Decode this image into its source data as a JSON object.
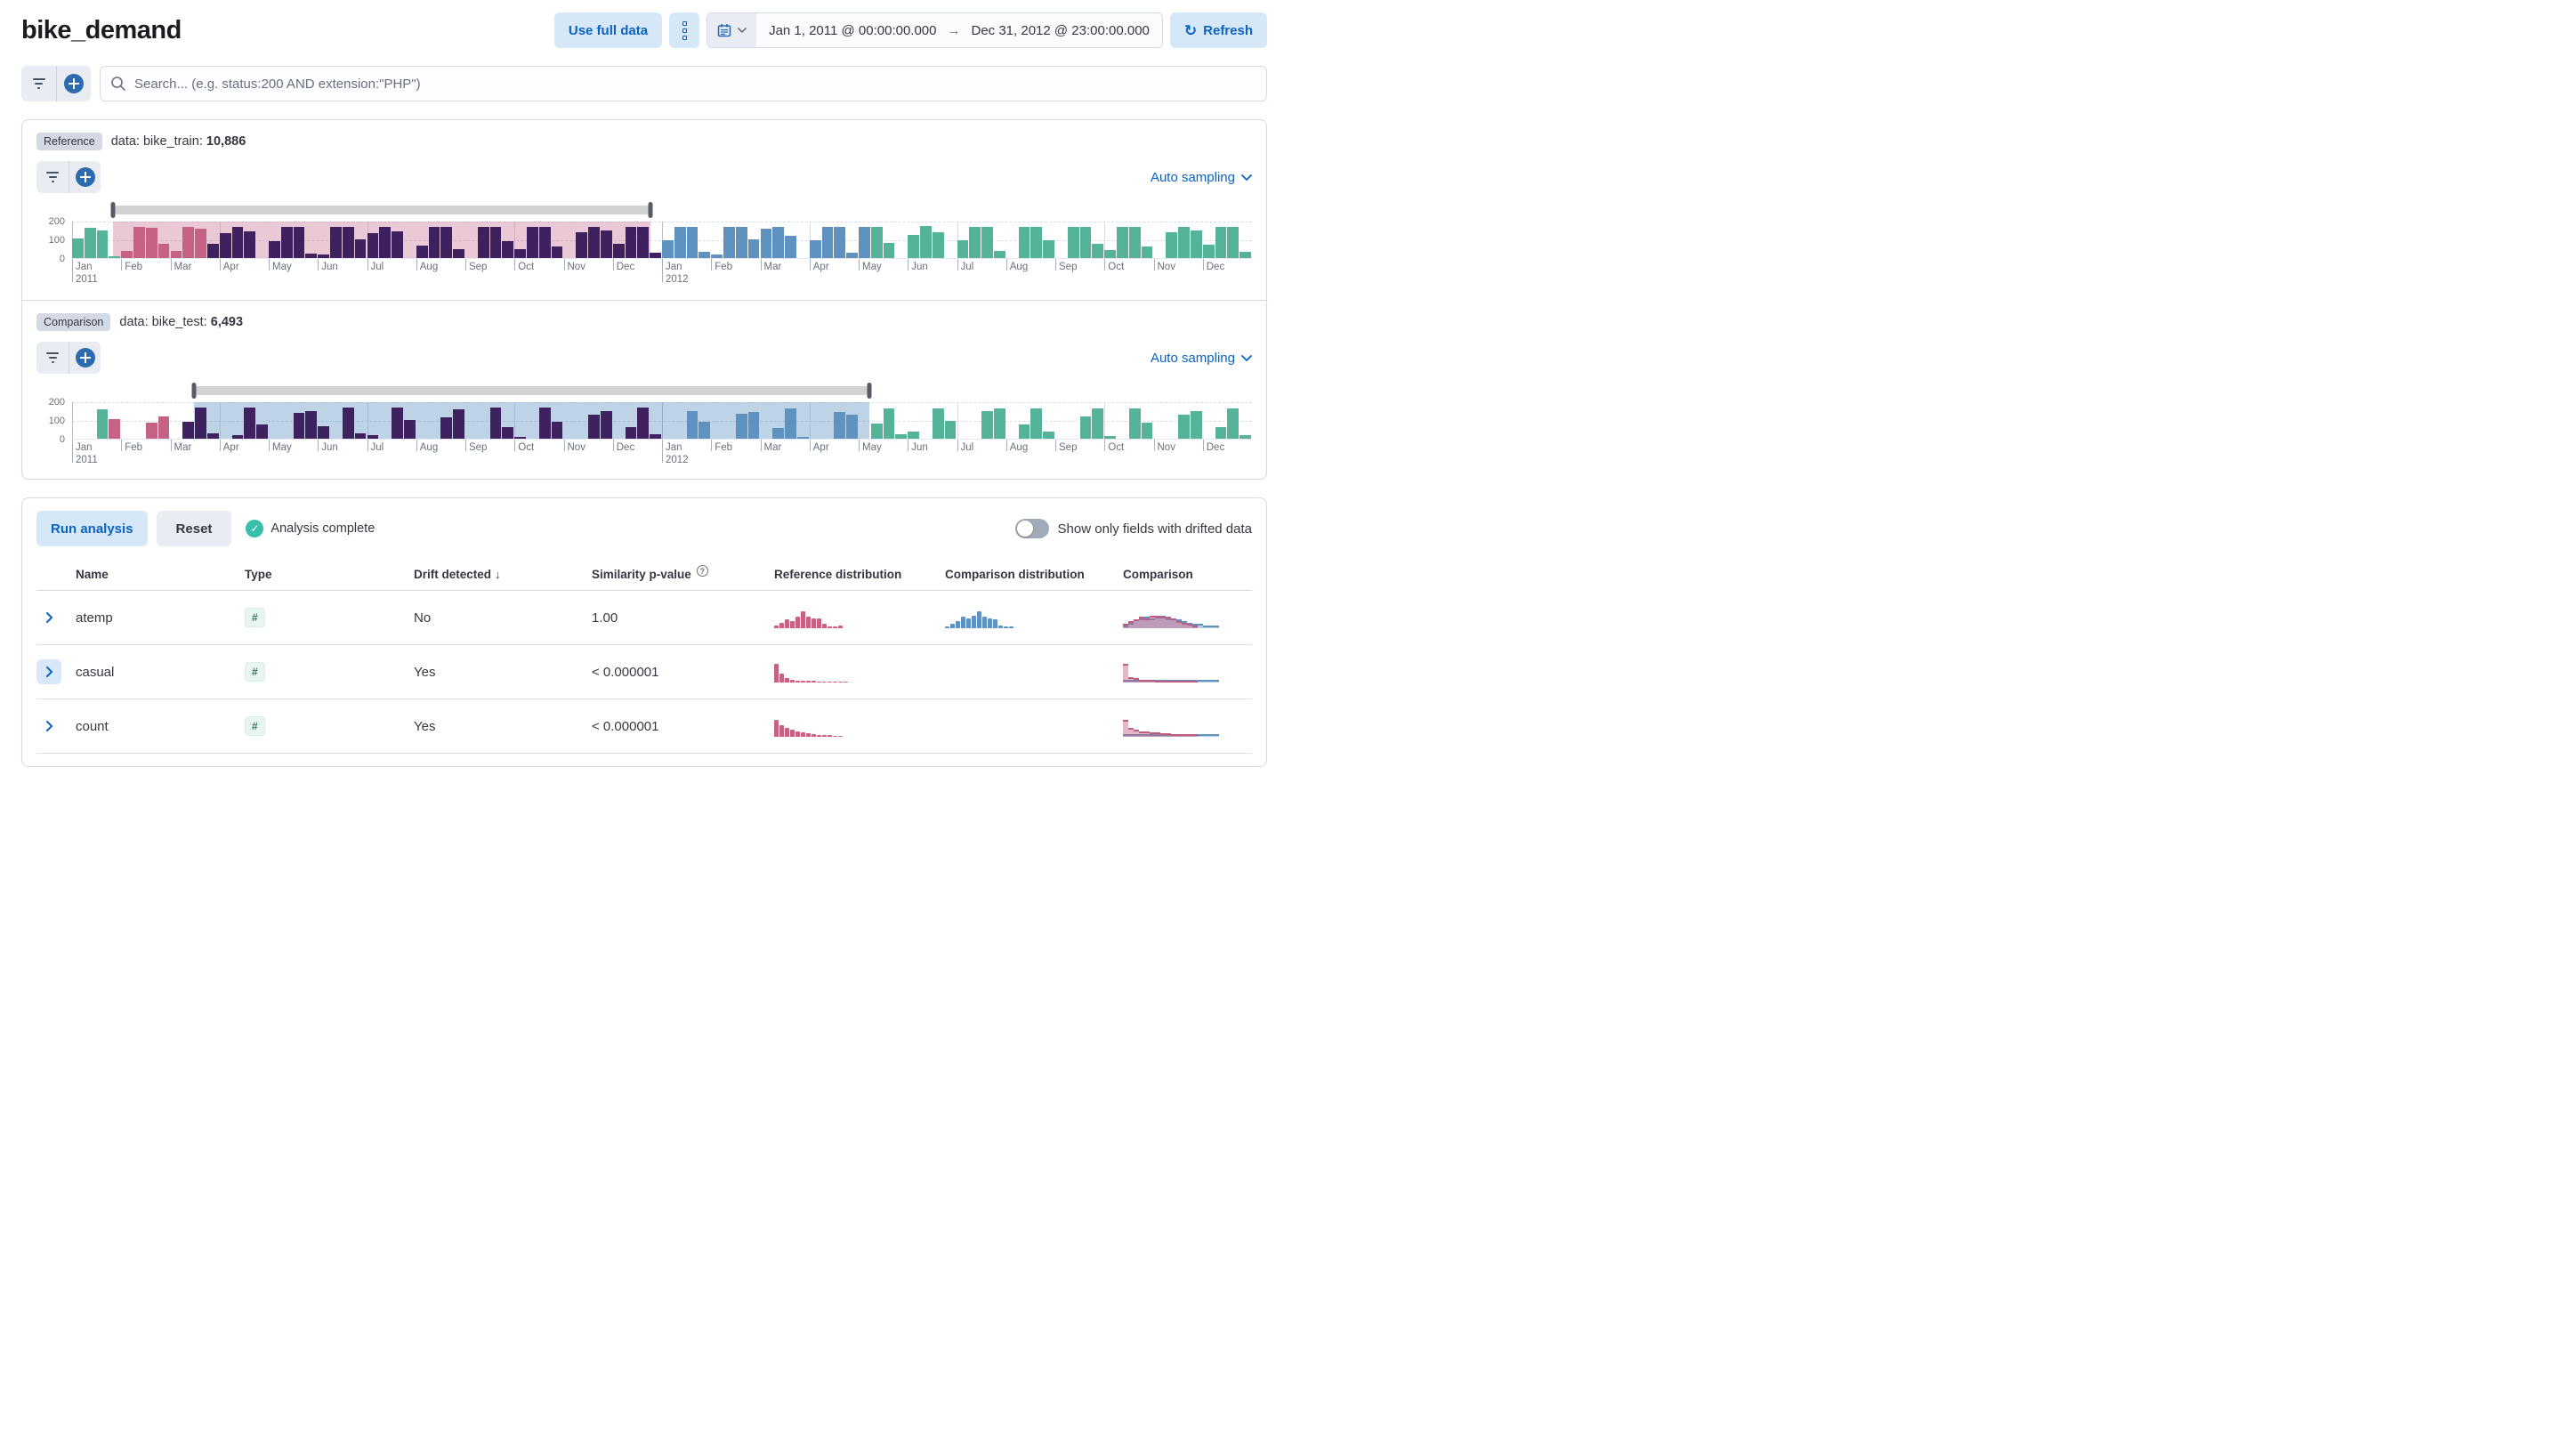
{
  "header": {
    "title": "bike_demand",
    "use_full_data": "Use full data",
    "date_start": "Jan 1, 2011 @ 00:00:00.000",
    "date_end": "Dec 31, 2012 @ 23:00:00.000",
    "refresh": "Refresh"
  },
  "search": {
    "placeholder": "Search... (e.g. status:200 AND extension:\"PHP\")"
  },
  "reference": {
    "badge": "Reference",
    "data_label": "data: bike_train:",
    "count": "10,886",
    "sampling": "Auto sampling"
  },
  "comparison": {
    "badge": "Comparison",
    "data_label": "data: bike_test:",
    "count": "6,493",
    "sampling": "Auto sampling"
  },
  "charts": {
    "y_ticks": [
      "200",
      "100",
      "0"
    ],
    "months": [
      "Jan",
      "Feb",
      "Mar",
      "Apr",
      "May",
      "Jun",
      "Jul",
      "Aug",
      "Sep",
      "Oct",
      "Nov",
      "Dec"
    ],
    "years": [
      "2011",
      "2012"
    ],
    "colors": {
      "t": "#54B399",
      "r": "#C66284",
      "p": "#3F2160",
      "b": "#6092C0"
    },
    "reference": {
      "overlay": "rgba(199,98,136,0.35)",
      "brush": {
        "start": 0.035,
        "end": 0.49
      },
      "bars": [
        [
          105,
          "t"
        ],
        [
          160,
          "t"
        ],
        [
          150,
          "t"
        ],
        [
          8,
          "t"
        ],
        [
          40,
          "r"
        ],
        [
          165,
          "r"
        ],
        [
          160,
          "r"
        ],
        [
          75,
          "r"
        ],
        [
          40,
          "r"
        ],
        [
          165,
          "r"
        ],
        [
          155,
          "r"
        ],
        [
          75,
          "p"
        ],
        [
          135,
          "p"
        ],
        [
          165,
          "p"
        ],
        [
          145,
          "p"
        ],
        [
          0,
          "p"
        ],
        [
          90,
          "p"
        ],
        [
          165,
          "p"
        ],
        [
          165,
          "p"
        ],
        [
          25,
          "p"
        ],
        [
          18,
          "p"
        ],
        [
          165,
          "p"
        ],
        [
          165,
          "p"
        ],
        [
          100,
          "p"
        ],
        [
          135,
          "p"
        ],
        [
          165,
          "p"
        ],
        [
          145,
          "p"
        ],
        [
          0,
          "p"
        ],
        [
          65,
          "p"
        ],
        [
          165,
          "p"
        ],
        [
          165,
          "p"
        ],
        [
          50,
          "p"
        ],
        [
          0,
          "p"
        ],
        [
          165,
          "p"
        ],
        [
          165,
          "p"
        ],
        [
          90,
          "p"
        ],
        [
          50,
          "p"
        ],
        [
          165,
          "p"
        ],
        [
          165,
          "p"
        ],
        [
          60,
          "p"
        ],
        [
          0,
          "p"
        ],
        [
          140,
          "p"
        ],
        [
          165,
          "p"
        ],
        [
          150,
          "p"
        ],
        [
          75,
          "p"
        ],
        [
          165,
          "p"
        ],
        [
          165,
          "p"
        ],
        [
          30,
          "p"
        ],
        [
          95,
          "b"
        ],
        [
          165,
          "b"
        ],
        [
          165,
          "b"
        ],
        [
          35,
          "b"
        ],
        [
          20,
          "b"
        ],
        [
          165,
          "b"
        ],
        [
          165,
          "b"
        ],
        [
          100,
          "b"
        ],
        [
          155,
          "b"
        ],
        [
          165,
          "b"
        ],
        [
          120,
          "b"
        ],
        [
          0,
          "b"
        ],
        [
          95,
          "b"
        ],
        [
          165,
          "b"
        ],
        [
          165,
          "b"
        ],
        [
          30,
          "b"
        ],
        [
          165,
          "b"
        ],
        [
          165,
          "t"
        ],
        [
          80,
          "t"
        ],
        [
          0,
          "t"
        ],
        [
          125,
          "t"
        ],
        [
          170,
          "t"
        ],
        [
          140,
          "t"
        ],
        [
          0,
          "t"
        ],
        [
          95,
          "t"
        ],
        [
          165,
          "t"
        ],
        [
          165,
          "t"
        ],
        [
          40,
          "t"
        ],
        [
          0,
          "t"
        ],
        [
          165,
          "t"
        ],
        [
          165,
          "t"
        ],
        [
          95,
          "t"
        ],
        [
          0,
          "t"
        ],
        [
          165,
          "t"
        ],
        [
          165,
          "t"
        ],
        [
          75,
          "t"
        ],
        [
          45,
          "t"
        ],
        [
          165,
          "t"
        ],
        [
          165,
          "t"
        ],
        [
          60,
          "t"
        ],
        [
          0,
          "t"
        ],
        [
          140,
          "t"
        ],
        [
          165,
          "t"
        ],
        [
          150,
          "t"
        ],
        [
          70,
          "t"
        ],
        [
          165,
          "t"
        ],
        [
          165,
          "t"
        ],
        [
          35,
          "t"
        ]
      ]
    },
    "comparisonChart": {
      "overlay": "rgba(96,146,192,0.4)",
      "brush": {
        "start": 0.103,
        "end": 0.676
      },
      "bars": [
        [
          0,
          "t"
        ],
        [
          0,
          "t"
        ],
        [
          155,
          "t"
        ],
        [
          105,
          "r"
        ],
        [
          0,
          "r"
        ],
        [
          0,
          "r"
        ],
        [
          85,
          "r"
        ],
        [
          120,
          "r"
        ],
        [
          0,
          "p"
        ],
        [
          90,
          "p"
        ],
        [
          165,
          "p"
        ],
        [
          30,
          "p"
        ],
        [
          0,
          "p"
        ],
        [
          20,
          "p"
        ],
        [
          168,
          "p"
        ],
        [
          78,
          "p"
        ],
        [
          0,
          "p"
        ],
        [
          0,
          "p"
        ],
        [
          140,
          "p"
        ],
        [
          148,
          "p"
        ],
        [
          68,
          "p"
        ],
        [
          0,
          "p"
        ],
        [
          168,
          "p"
        ],
        [
          30,
          "p"
        ],
        [
          20,
          "p"
        ],
        [
          0,
          "p"
        ],
        [
          168,
          "p"
        ],
        [
          100,
          "p"
        ],
        [
          0,
          "p"
        ],
        [
          0,
          "p"
        ],
        [
          115,
          "p"
        ],
        [
          155,
          "p"
        ],
        [
          0,
          "p"
        ],
        [
          0,
          "p"
        ],
        [
          165,
          "p"
        ],
        [
          60,
          "p"
        ],
        [
          10,
          "p"
        ],
        [
          0,
          "p"
        ],
        [
          165,
          "p"
        ],
        [
          90,
          "p"
        ],
        [
          0,
          "p"
        ],
        [
          0,
          "p"
        ],
        [
          130,
          "p"
        ],
        [
          150,
          "p"
        ],
        [
          0,
          "p"
        ],
        [
          60,
          "p"
        ],
        [
          165,
          "p"
        ],
        [
          25,
          "p"
        ],
        [
          0,
          "b"
        ],
        [
          0,
          "b"
        ],
        [
          150,
          "b"
        ],
        [
          90,
          "b"
        ],
        [
          0,
          "b"
        ],
        [
          0,
          "b"
        ],
        [
          135,
          "b"
        ],
        [
          145,
          "b"
        ],
        [
          0,
          "b"
        ],
        [
          55,
          "b"
        ],
        [
          160,
          "b"
        ],
        [
          5,
          "b"
        ],
        [
          0,
          "b"
        ],
        [
          0,
          "b"
        ],
        [
          145,
          "b"
        ],
        [
          130,
          "b"
        ],
        [
          0,
          "b"
        ],
        [
          80,
          "t"
        ],
        [
          160,
          "t"
        ],
        [
          25,
          "t"
        ],
        [
          40,
          "t"
        ],
        [
          0,
          "t"
        ],
        [
          160,
          "t"
        ],
        [
          95,
          "t"
        ],
        [
          0,
          "t"
        ],
        [
          0,
          "t"
        ],
        [
          150,
          "t"
        ],
        [
          160,
          "t"
        ],
        [
          0,
          "t"
        ],
        [
          75,
          "t"
        ],
        [
          160,
          "t"
        ],
        [
          40,
          "t"
        ],
        [
          0,
          "t"
        ],
        [
          0,
          "t"
        ],
        [
          120,
          "t"
        ],
        [
          160,
          "t"
        ],
        [
          15,
          "t"
        ],
        [
          0,
          "t"
        ],
        [
          160,
          "t"
        ],
        [
          85,
          "t"
        ],
        [
          0,
          "t"
        ],
        [
          0,
          "t"
        ],
        [
          130,
          "t"
        ],
        [
          150,
          "t"
        ],
        [
          0,
          "t"
        ],
        [
          60,
          "t"
        ],
        [
          160,
          "t"
        ],
        [
          20,
          "t"
        ]
      ]
    }
  },
  "analysis": {
    "run": "Run analysis",
    "reset": "Reset",
    "status": "Analysis complete",
    "toggle_label": "Show only fields with drifted data"
  },
  "table": {
    "columns": [
      "Name",
      "Type",
      "Drift detected",
      "Similarity p-value",
      "Reference distribution",
      "Comparison distribution",
      "Comparison"
    ],
    "rows": [
      {
        "name": "atemp",
        "type": "#",
        "drift": "No",
        "p": "1.00",
        "refDist": {
          "color": "#C66284",
          "heights": [
            2,
            4,
            6,
            5,
            8,
            12,
            8,
            7,
            7,
            3,
            1,
            1,
            2
          ]
        },
        "compDist": {
          "color": "#6092C0",
          "heights": [
            1,
            3,
            5,
            8,
            7,
            9,
            12,
            8,
            7,
            6,
            2,
            1,
            1
          ]
        },
        "overlay": {
          "pink": [
            3,
            5,
            6,
            8,
            7,
            9,
            9,
            8,
            8,
            7,
            5,
            4,
            3,
            2,
            0,
            0,
            0,
            0
          ],
          "blue": [
            2,
            4,
            6,
            7,
            8,
            7,
            8,
            9,
            7,
            7,
            6,
            5,
            4,
            3,
            3,
            2,
            2,
            2
          ]
        }
      },
      {
        "name": "casual",
        "type": "#",
        "drift": "Yes",
        "p": "< 0.000001",
        "refDist": {
          "color": "#C66284",
          "heights": [
            13,
            6,
            3,
            2,
            1.5,
            1.2,
            1,
            1,
            0.8,
            0.8,
            0.6,
            0.5,
            0.5,
            0.4
          ]
        },
        "compDist": null,
        "overlay": {
          "pink": [
            13,
            4,
            3,
            2,
            2,
            2,
            1.5,
            1.5,
            1.5,
            1,
            1,
            1,
            1,
            1,
            0,
            0,
            0,
            0
          ],
          "blue": [
            2,
            2,
            2,
            2,
            2,
            2,
            2,
            2,
            2,
            2,
            2,
            2,
            2,
            2,
            2,
            2,
            2,
            2
          ]
        }
      },
      {
        "name": "count",
        "type": "#",
        "drift": "Yes",
        "p": "< 0.000001",
        "refDist": {
          "color": "#C66284",
          "heights": [
            12,
            8,
            6,
            5,
            4,
            3,
            2.5,
            2,
            1.5,
            1.2,
            1,
            0.8,
            0.6
          ]
        },
        "compDist": null,
        "overlay": {
          "pink": [
            12,
            6,
            5,
            4,
            4,
            3,
            3,
            2.5,
            2.5,
            2,
            2,
            2,
            2,
            2,
            0,
            0,
            0,
            0
          ],
          "blue": [
            2,
            2,
            2,
            2,
            2,
            2,
            2,
            2,
            2,
            2,
            2,
            2,
            2,
            2,
            2,
            2,
            2,
            2
          ]
        }
      }
    ]
  }
}
